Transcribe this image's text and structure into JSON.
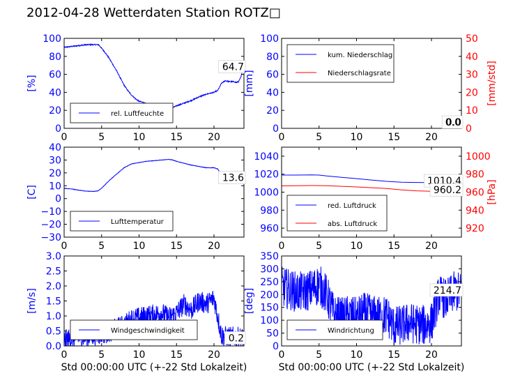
{
  "title": "2012-04-28 Wetterdaten Station ROTZ□",
  "colors": {
    "primary": "#0000ff",
    "secondary": "#ff0000"
  },
  "chart_data": [
    {
      "id": "feuchte",
      "type": "line",
      "xlim": [
        0,
        24
      ],
      "ylim": [
        0,
        100
      ],
      "xticks": [
        "0",
        "5",
        "10",
        "15",
        "20"
      ],
      "yticks": [
        "0",
        "20",
        "40",
        "60",
        "80",
        "100"
      ],
      "ylabel": "[%]",
      "xlabel": "",
      "value_label": "64.7",
      "legend_position": "lower-left",
      "series": [
        {
          "name": "rel. Luftfeuchte",
          "color": "#0000ff",
          "noise": 0.6,
          "x": [
            0,
            1,
            2,
            3,
            4,
            4.6,
            5,
            5.5,
            6,
            6.5,
            7,
            7.5,
            8,
            8.5,
            9,
            9.5,
            10,
            10.5,
            11,
            11.5,
            12,
            12.5,
            13,
            13.5,
            14,
            14.5,
            15,
            16,
            17,
            18,
            19,
            20,
            20.5,
            21,
            21.5,
            22,
            22.5,
            23,
            23.3,
            23.6,
            23.8
          ],
          "y": [
            90,
            91,
            92,
            93,
            93,
            93,
            89,
            84,
            78,
            71,
            64,
            56,
            48,
            42,
            37,
            33,
            30,
            29,
            27,
            25,
            24,
            23,
            23,
            22,
            22,
            23,
            25,
            28,
            31,
            35,
            38,
            40,
            42,
            50,
            53,
            52,
            52,
            51,
            52,
            57,
            64
          ]
        }
      ]
    },
    {
      "id": "niederschlag",
      "type": "line",
      "xlim": [
        0,
        24
      ],
      "ylim": [
        0,
        100
      ],
      "y2lim": [
        0,
        50
      ],
      "xticks": [
        "0",
        "5",
        "10",
        "15",
        "20"
      ],
      "yticks": [
        "0",
        "20",
        "40",
        "60",
        "80",
        "100"
      ],
      "y2ticks": [
        "0",
        "10",
        "20",
        "30",
        "40",
        "50"
      ],
      "ylabel": "[mm]",
      "y2label": "[mm/std]",
      "value_label": "0.0",
      "value_label2": "0.0",
      "legend_position": "upper-left",
      "series": [
        {
          "name": "kum. Niederschlag",
          "color": "#0000ff",
          "axis": "left",
          "x": [
            0,
            24
          ],
          "y": [
            0,
            0
          ]
        },
        {
          "name": "Niederschlagsrate",
          "color": "#ff0000",
          "axis": "right",
          "x": [
            0,
            24
          ],
          "y": [
            0,
            0
          ]
        }
      ]
    },
    {
      "id": "temperatur",
      "type": "line",
      "xlim": [
        0,
        24
      ],
      "ylim": [
        -30,
        40
      ],
      "xticks": [
        "0",
        "5",
        "10",
        "15",
        "20"
      ],
      "yticks": [
        "−30",
        "−20",
        "−10",
        "0",
        "10",
        "20",
        "30",
        "40"
      ],
      "ylabel": "[C]",
      "value_label": "13.6",
      "legend_position": "lower-left",
      "series": [
        {
          "name": "Lufttemperatur",
          "color": "#0000ff",
          "noise": 0.15,
          "x": [
            0,
            1,
            2,
            3,
            4,
            4.5,
            5,
            6,
            7,
            8,
            9,
            10,
            11,
            12,
            13,
            14,
            14.5,
            15,
            16,
            17,
            18,
            19,
            20,
            20.5,
            21,
            22,
            23,
            23.8
          ],
          "y": [
            8,
            7.5,
            6.5,
            5.8,
            5.6,
            6,
            8,
            14,
            19,
            24,
            27,
            28,
            29,
            29.5,
            30,
            30.5,
            30,
            29,
            27.5,
            26,
            25,
            24,
            24,
            23,
            18,
            15,
            13.6,
            13.5
          ]
        }
      ]
    },
    {
      "id": "luftdruck",
      "type": "line",
      "xlim": [
        0,
        24
      ],
      "ylim": [
        950,
        1050
      ],
      "y2lim": [
        910,
        1010
      ],
      "xticks": [
        "0",
        "5",
        "10",
        "15",
        "20"
      ],
      "yticks": [
        "960",
        "980",
        "1000",
        "1020",
        "1040"
      ],
      "y2ticks": [
        "920",
        "940",
        "960",
        "980",
        "1000"
      ],
      "ylabel": "",
      "y2label": "[hPa]",
      "value_label": "1010.4",
      "value_label2": "960.2",
      "legend_position": "lower-left",
      "series": [
        {
          "name": "red. Luftdruck",
          "color": "#0000ff",
          "axis": "left",
          "x": [
            0,
            2,
            4,
            5,
            6,
            8,
            10,
            12,
            14,
            16,
            18,
            20,
            22,
            24
          ],
          "y": [
            1019,
            1019,
            1019.2,
            1019,
            1018,
            1016.5,
            1015,
            1013.5,
            1012,
            1011,
            1010.8,
            1010.6,
            1010.5,
            1010.4
          ]
        },
        {
          "name": "abs. Luftdruck",
          "color": "#ff0000",
          "axis": "right",
          "x": [
            0,
            2,
            4,
            6,
            8,
            10,
            12,
            14,
            16,
            18,
            20,
            22,
            24
          ],
          "y": [
            967,
            967.2,
            967.4,
            967.2,
            966.5,
            965.8,
            965,
            964,
            962.5,
            961.5,
            961,
            960.5,
            960.2
          ]
        }
      ]
    },
    {
      "id": "wind",
      "type": "line",
      "xlim": [
        0,
        24
      ],
      "ylim": [
        0,
        3
      ],
      "xticks": [
        "0",
        "5",
        "10",
        "15",
        "20"
      ],
      "yticks": [
        "0.0",
        "0.5",
        "1.0",
        "1.5",
        "2.0",
        "2.5",
        "3.0"
      ],
      "ylabel": "[m/s]",
      "xlabel": "Std 00:00:00 UTC (+-22 Std Lokalzeit)",
      "value_label": "0.2",
      "legend_position": "lower-left",
      "series": [
        {
          "name": "Windgeschwindigkeit",
          "color": "#0000ff",
          "noise": 0.35,
          "x": [
            0,
            1,
            2,
            3,
            4,
            5,
            6,
            7,
            8,
            9,
            10,
            11,
            12,
            13,
            14,
            15,
            16,
            17,
            18,
            19,
            20,
            21,
            22,
            23,
            24
          ],
          "y": [
            0.2,
            0.25,
            0.3,
            0.3,
            0.35,
            0.4,
            0.45,
            0.6,
            0.7,
            0.9,
            0.95,
            1.0,
            1.05,
            1.1,
            0.95,
            1.1,
            1.4,
            1.2,
            1.5,
            1.4,
            1.6,
            0.35,
            0.3,
            0.3,
            0.25
          ]
        }
      ]
    },
    {
      "id": "windrichtung",
      "type": "line",
      "xlim": [
        0,
        24
      ],
      "ylim": [
        0,
        350
      ],
      "xticks": [
        "0",
        "5",
        "10",
        "15",
        "20"
      ],
      "yticks": [
        "0",
        "50",
        "100",
        "150",
        "200",
        "250",
        "300",
        "350"
      ],
      "ylabel": "[deg]",
      "xlabel": "Std 00:00:00 UTC (+-22 Std Lokalzeit)",
      "value_label": "214.7",
      "legend_position": "lower-left",
      "series": [
        {
          "name": "Windrichtung",
          "color": "#0000ff",
          "noise": 80,
          "x": [
            0,
            1,
            2,
            3,
            4,
            5,
            6,
            7,
            8,
            9,
            10,
            11,
            12,
            13,
            14,
            15,
            16,
            17,
            18,
            19,
            20,
            21,
            22,
            23,
            24
          ],
          "y": [
            230,
            220,
            210,
            210,
            220,
            240,
            200,
            120,
            110,
            120,
            110,
            130,
            120,
            115,
            120,
            75,
            80,
            90,
            85,
            80,
            90,
            200,
            180,
            210,
            210
          ]
        }
      ]
    }
  ]
}
